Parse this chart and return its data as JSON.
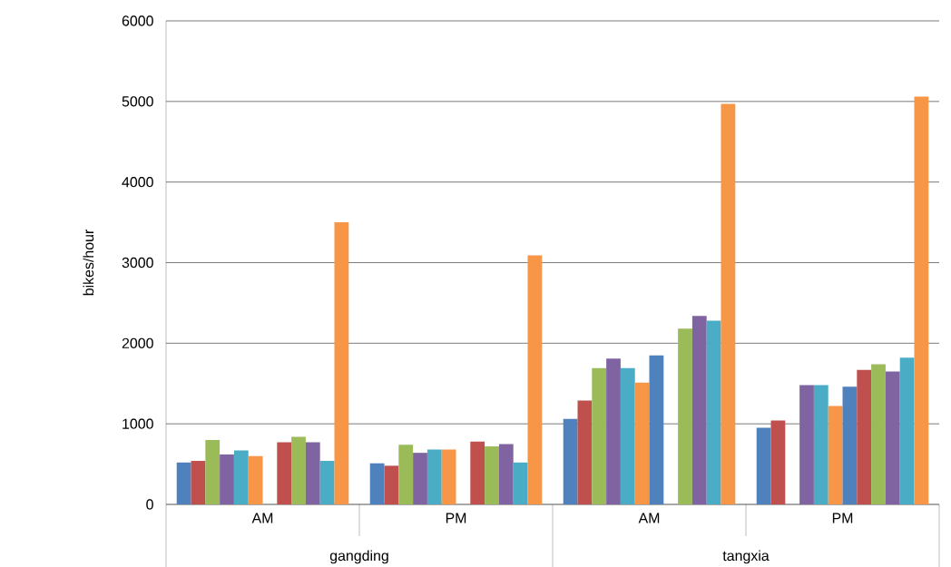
{
  "chart_data": {
    "type": "bar",
    "ylabel": "bikes/hour",
    "categories": [
      "AM",
      "PM",
      "AM",
      "PM"
    ],
    "annotations": [
      "gangding",
      "tangxia"
    ],
    "ylim": [
      0,
      6000
    ],
    "yticks": [
      0,
      1000,
      2000,
      3000,
      4000,
      5000,
      6000
    ],
    "grid": "y",
    "series": [
      {
        "color": "#4f81bd",
        "values": [
          520,
          510,
          1060,
          950
        ]
      },
      {
        "color": "#c0504d",
        "values": [
          540,
          480,
          1290,
          1040
        ]
      },
      {
        "color": "#9bbb59",
        "values": [
          800,
          740,
          1690,
          null
        ]
      },
      {
        "color": "#8064a2",
        "values": [
          620,
          640,
          1810,
          1480
        ]
      },
      {
        "color": "#4bacc6",
        "values": [
          670,
          680,
          1690,
          1480
        ]
      },
      {
        "color": "#f79646",
        "values": [
          600,
          680,
          1510,
          1220
        ]
      },
      {
        "color": "#4f81bd",
        "values": [
          null,
          null,
          1850,
          1460
        ]
      },
      {
        "color": "#c0504d",
        "values": [
          770,
          780,
          null,
          1670
        ]
      },
      {
        "color": "#9bbb59",
        "values": [
          840,
          720,
          2180,
          1740
        ]
      },
      {
        "color": "#8064a2",
        "values": [
          770,
          750,
          2340,
          1650
        ]
      },
      {
        "color": "#4bacc6",
        "values": [
          540,
          520,
          2280,
          1820
        ]
      },
      {
        "color": "#f79646",
        "values": [
          3500,
          3090,
          4970,
          5060
        ]
      }
    ]
  }
}
